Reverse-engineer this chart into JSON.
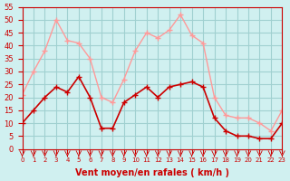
{
  "background_color": "#d0f0f0",
  "grid_color": "#a0d0d0",
  "ylabel": "",
  "xlabel": "Vent moyen/en rafales ( km/h )",
  "xlabel_color": "#cc0000",
  "yticks": [
    0,
    5,
    10,
    15,
    20,
    25,
    30,
    35,
    40,
    45,
    50,
    55
  ],
  "xtick_labels": [
    "0",
    "1",
    "2",
    "3",
    "4",
    "5",
    "6",
    "7",
    "8",
    "9",
    "10",
    "11",
    "12",
    "13",
    "14",
    "15",
    "16",
    "17",
    "18",
    "19",
    "20",
    "21",
    "22",
    "23"
  ],
  "ylim": [
    0,
    55
  ],
  "xlim": [
    0,
    23
  ],
  "wind_avg": [
    10,
    15,
    20,
    24,
    22,
    28,
    20,
    8,
    8,
    18,
    21,
    24,
    20,
    24,
    25,
    26,
    24,
    12,
    7,
    5,
    5,
    4,
    4,
    10
  ],
  "wind_gust": [
    21,
    30,
    38,
    50,
    42,
    41,
    35,
    20,
    18,
    27,
    38,
    45,
    43,
    46,
    52,
    44,
    41,
    20,
    13,
    12,
    12,
    10,
    7,
    15
  ],
  "avg_color": "#cc0000",
  "gust_color": "#ff9999",
  "avg_lw": 1.2,
  "gust_lw": 1.0,
  "marker": "+",
  "markersize": 5,
  "arrow_color": "#cc0000",
  "title_color": "#cc0000",
  "tick_color": "#cc0000"
}
